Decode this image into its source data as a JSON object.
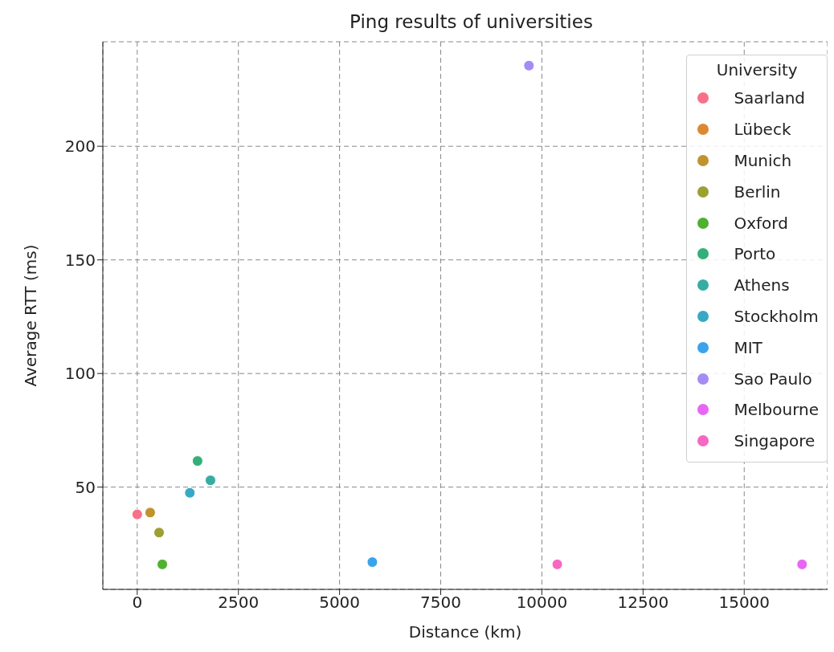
{
  "chart_data": {
    "type": "scatter",
    "title": "Ping results of universities",
    "xlabel": "Distance (km)",
    "ylabel": "Average RTT (ms)",
    "legend_title": "University",
    "xlim": [
      -850,
      17060
    ],
    "ylim": [
      5,
      246
    ],
    "xticks": [
      0,
      2500,
      5000,
      7500,
      10000,
      12500,
      15000
    ],
    "yticks": [
      50,
      100,
      150,
      200
    ],
    "grid": true,
    "legend": "top right",
    "marker": "circle",
    "series": [
      {
        "name": "Saarland",
        "color": "#f77189",
        "x": [
          0
        ],
        "values": [
          38
        ]
      },
      {
        "name": "Lübeck",
        "color": "#dc8932",
        "x": [
          null
        ],
        "values": [
          null
        ]
      },
      {
        "name": "Munich",
        "color": "#c0932f",
        "x": [
          320
        ],
        "values": [
          38.8
        ]
      },
      {
        "name": "Berlin",
        "color": "#9ba031",
        "x": [
          540
        ],
        "values": [
          30
        ]
      },
      {
        "name": "Oxford",
        "color": "#50b131",
        "x": [
          620
        ],
        "values": [
          16
        ]
      },
      {
        "name": "Porto",
        "color": "#33b07a",
        "x": [
          1490
        ],
        "values": [
          61.5
        ]
      },
      {
        "name": "Athens",
        "color": "#36ada4",
        "x": [
          1810
        ],
        "values": [
          53
        ]
      },
      {
        "name": "Stockholm",
        "color": "#38a9c5",
        "x": [
          1300
        ],
        "values": [
          47.5
        ]
      },
      {
        "name": "MIT",
        "color": "#3ba3ec",
        "x": [
          5810
        ],
        "values": [
          17
        ]
      },
      {
        "name": "Sao Paulo",
        "color": "#a48cf4",
        "x": [
          9680
        ],
        "values": [
          235.5
        ]
      },
      {
        "name": "Melbourne",
        "color": "#e866f4",
        "x": [
          16430
        ],
        "values": [
          16
        ]
      },
      {
        "name": "Singapore",
        "color": "#f668c2",
        "x": [
          10380
        ],
        "values": [
          16
        ]
      }
    ]
  }
}
